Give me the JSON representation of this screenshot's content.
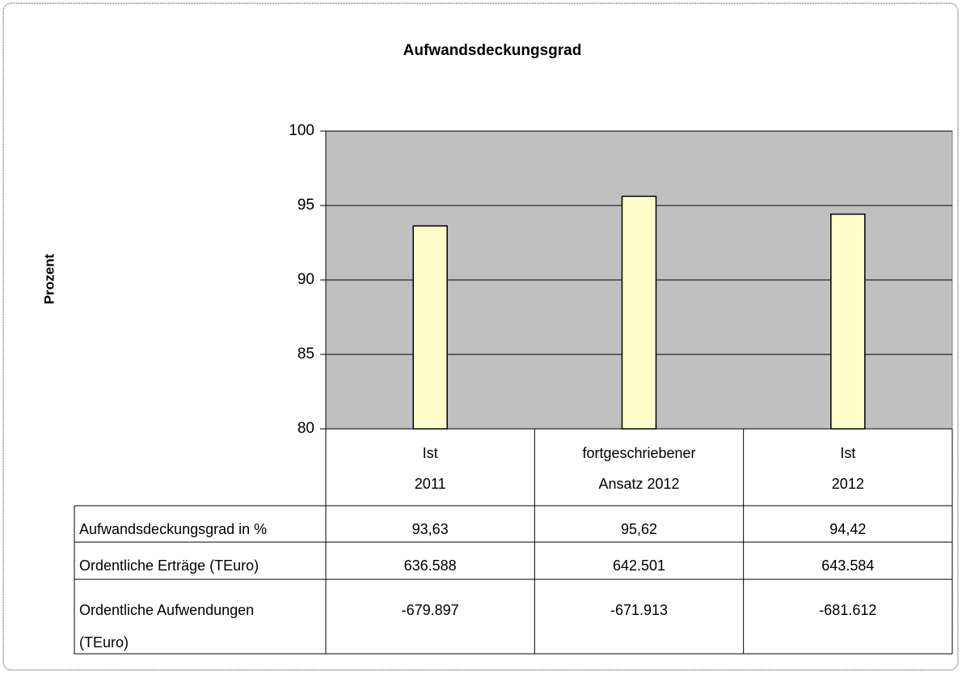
{
  "chart_data": {
    "type": "bar",
    "title": "Aufwandsdeckungsgrad",
    "y_label": "Prozent",
    "categories": [
      [
        "Ist",
        "2011"
      ],
      [
        "fortgeschriebener",
        "Ansatz 2012"
      ],
      [
        "Ist",
        "2012"
      ]
    ],
    "series_label": "Aufwandsdeckungsgrad in %",
    "values": [
      93.63,
      95.62,
      94.42
    ],
    "value_labels": [
      "93,63",
      "95,62",
      "94,42"
    ],
    "color": "#ffffcc",
    "plot_color": "#c0c0c0",
    "ylim": [
      80,
      100
    ],
    "yticks": [
      80,
      85,
      90,
      95,
      100
    ],
    "grid": true,
    "data_table": [
      {
        "label": [
          "Ordentliche Erträge (TEuro)"
        ],
        "cells": [
          "636.588",
          "642.501",
          "643.584"
        ]
      },
      {
        "label": [
          "Ordentliche Aufwendungen",
          "(TEuro)"
        ],
        "cells": [
          "-679.897",
          "-671.913",
          "-681.612"
        ]
      }
    ]
  }
}
